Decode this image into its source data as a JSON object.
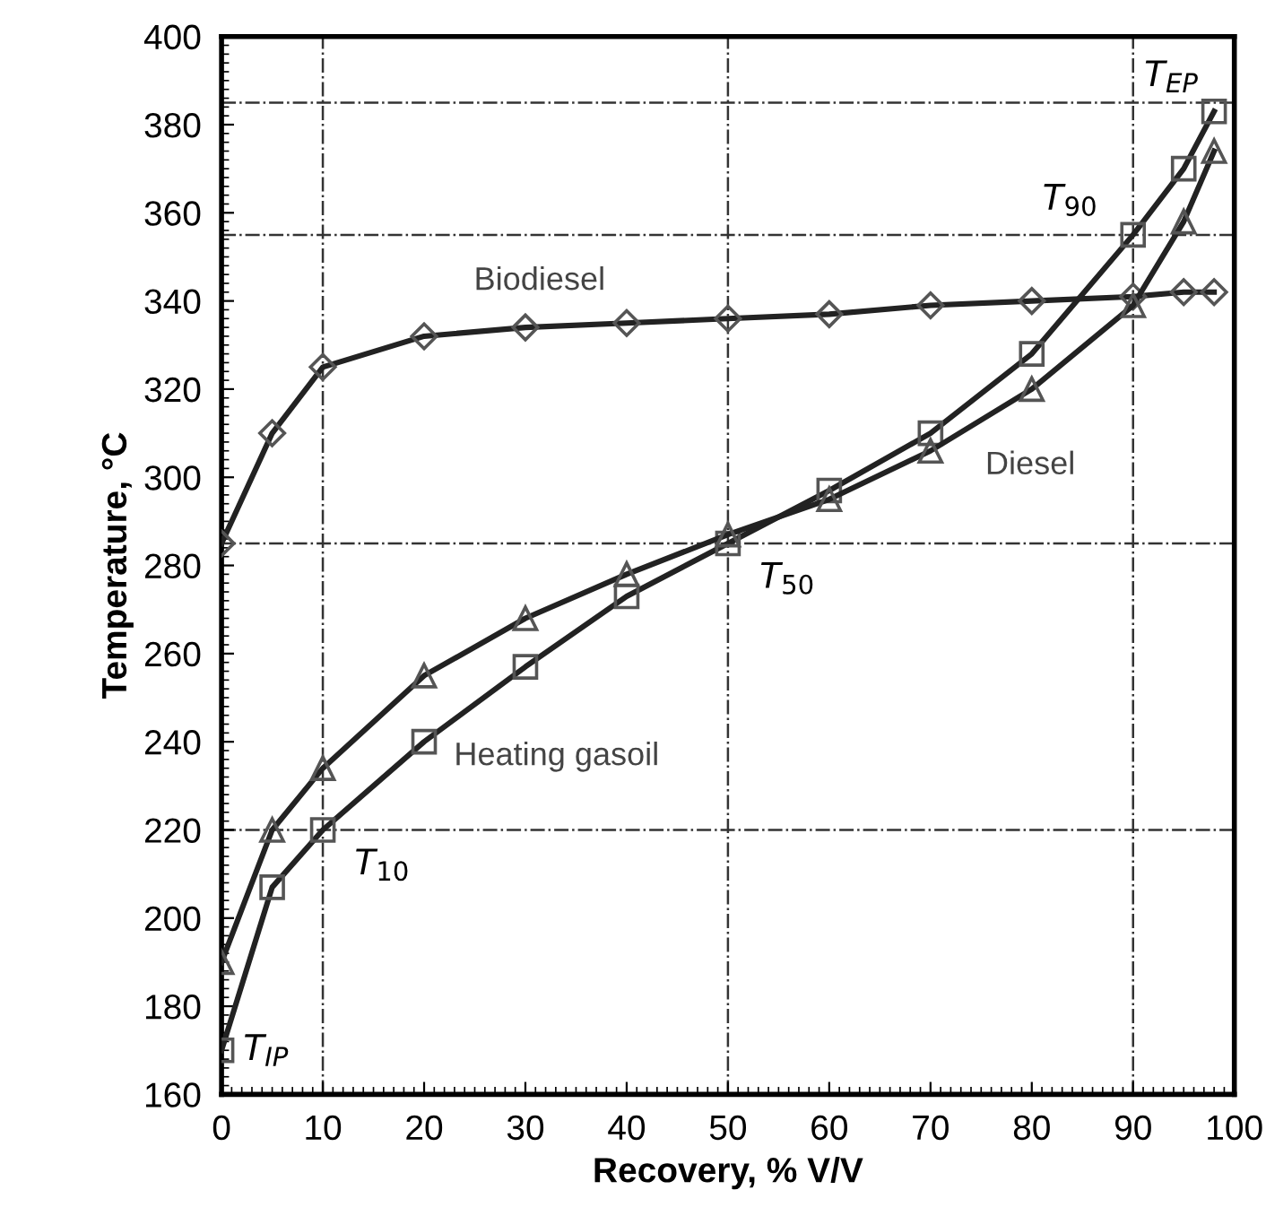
{
  "chart_data": {
    "type": "line",
    "xlabel": "Recovery, % V/V",
    "ylabel": "Temperature, °C",
    "x": [
      0,
      5,
      10,
      20,
      30,
      40,
      50,
      60,
      70,
      80,
      90,
      95,
      98
    ],
    "series": [
      {
        "name": "Biodiesel",
        "color": "#222222",
        "marker": "diamond",
        "values": [
          285,
          310,
          325,
          332,
          334,
          335,
          336,
          337,
          339,
          340,
          341,
          342,
          342
        ]
      },
      {
        "name": "Heating gasoil",
        "color": "#222222",
        "marker": "square",
        "values": [
          170,
          207,
          220,
          240,
          257,
          273,
          285,
          297,
          310,
          328,
          355,
          370,
          383
        ]
      },
      {
        "name": "Diesel",
        "color": "#222222",
        "marker": "triangle",
        "values": [
          190,
          220,
          234,
          255,
          268,
          278,
          287,
          295,
          306,
          320,
          339,
          358,
          374
        ]
      }
    ],
    "xlim": [
      0,
      100
    ],
    "xticks": [
      0,
      10,
      20,
      30,
      40,
      50,
      60,
      70,
      80,
      90,
      100
    ],
    "ylim": [
      160,
      400
    ],
    "yticks": [
      160,
      180,
      200,
      220,
      240,
      260,
      280,
      300,
      320,
      340,
      360,
      380,
      400
    ],
    "ref_lines": [
      {
        "axis": "y",
        "value": 385,
        "line_style": "dashdot"
      },
      {
        "axis": "y",
        "value": 355,
        "line_style": "dashdot"
      },
      {
        "axis": "y",
        "value": 285,
        "line_style": "dashdot"
      },
      {
        "axis": "y",
        "value": 220,
        "line_style": "dashdot"
      },
      {
        "axis": "x",
        "value": 10,
        "line_style": "dashdot"
      },
      {
        "axis": "x",
        "value": 50,
        "line_style": "dashdot"
      },
      {
        "axis": "x",
        "value": 90,
        "line_style": "dashdot"
      }
    ],
    "annotations": [
      {
        "text": "T$_{IP}$",
        "x": 0,
        "y": 170
      },
      {
        "text": "T$_{10}$",
        "x": 10,
        "y": 220
      },
      {
        "text": "T$_{50}$",
        "x": 50,
        "y": 285
      },
      {
        "text": "T$_{90}$",
        "x": 90,
        "y": 355
      },
      {
        "text": "T$_{EP}$",
        "x": 98,
        "y": 383
      }
    ],
    "grid": false,
    "legend": false
  }
}
